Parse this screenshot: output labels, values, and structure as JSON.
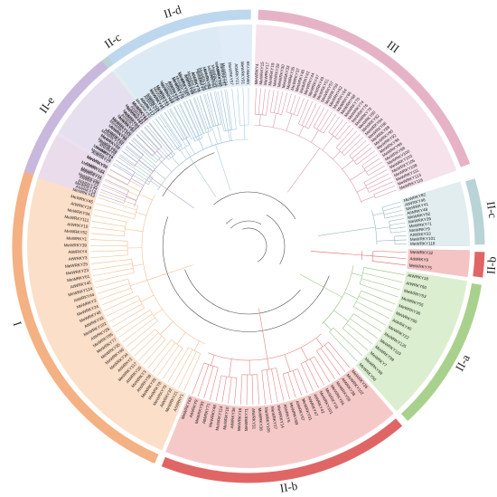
{
  "figure": {
    "type": "circular phylogenetic tree",
    "colors": {
      "I": "#f4b183",
      "II-a": "#a9d18e",
      "II-b": "#e06666",
      "II-c": "#b9d3d6",
      "II-d": "#bdd7ee",
      "II-e": "#c9b8dd",
      "III": "#e6b3c6",
      "backbone": "#444444"
    },
    "groups": [
      {
        "id": "III",
        "label": "III",
        "start": 272,
        "end": 340,
        "color": "#e6b3c6",
        "branch": "#d98fa9",
        "fill": "#f5dde6",
        "leaves": [
          "MeWRKY4",
          "MeWRKY15",
          "MeWRKY17",
          "MeWRKY19",
          "MeWRKY28",
          "MeWRKY30",
          "MeWRKY33",
          "MeWRKY35",
          "MeWRKY37",
          "MeWRKY40",
          "MeWRKY42",
          "MeWRKY44",
          "MeWRKY47",
          "MeWRKY49",
          "MeWRKY51",
          "MeWRKY57",
          "MeWRKY59",
          "MeWRKY62",
          "MeWRKY64",
          "MeWRKY66",
          "MeWRKY68",
          "MeWRKY70",
          "MeWRKY74",
          "MeWRKY76",
          "MeWRKY78",
          "MeWRKY80",
          "MeWRKY82",
          "MeWRKY84",
          "MeWRKY86",
          "MeWRKY88",
          "MeWRKY90",
          "MeWRKY92",
          "MeWRKY94",
          "MeWRKY96",
          "MeWRKY98",
          "MeWRKY100",
          "MeWRKY103",
          "MeWRKY105",
          "MeWRKY108",
          "MeWRKY111",
          "MeWRKY113",
          "MeWRKY116"
        ]
      },
      {
        "id": "II-c-top",
        "label": "II-c",
        "start": 343,
        "end": 360,
        "color": "#b9d3d6",
        "branch": "#8fb3b8",
        "fill": "#dceaeb",
        "leaves": [
          "MeWRKY82",
          "AtWRKY46",
          "MeWRKY41",
          "AtWRKY48",
          "MeWRKY92",
          "MeWRKY26",
          "MeWRKY71",
          "MeWRKY9",
          "AtWRKY53",
          "MeWRKY101",
          "MeWRKY118"
        ]
      },
      {
        "id": "II-b-top",
        "label": "II-b",
        "start": 361,
        "end": 368,
        "color": "#e06666",
        "branch": "#e06666",
        "fill": "#f2b8b8",
        "leaves": [
          "MeWRKY32",
          "AtWRKY9",
          "MeWRKY75"
        ]
      },
      {
        "id": "II-a",
        "label": "II-a",
        "start": 369,
        "end": 408,
        "color": "#a9d18e",
        "branch": "#8fc27a",
        "fill": "#d6ebc8",
        "leaves": [
          "AtWRKY18",
          "AtWRKY60",
          "MeWRKY53",
          "MeWRKY55",
          "MeWRKY36",
          "MeWRKY60",
          "AtWRKY40",
          "MeWRKY22",
          "MeWRKY125",
          "MeWRKY119",
          "MeWRKY99",
          "MeWRKY7",
          "MeWRKY98",
          "MeWRKY56"
        ]
      },
      {
        "id": "II-b",
        "label": "II-b",
        "start": 409,
        "end": 472,
        "color": "#e06666",
        "branch": "#e47a7a",
        "fill": "#f4c0c0",
        "leaves": [
          "MeWRKY36",
          "MeWRKY102",
          "AtWRKY38",
          "MeWRKY58",
          "MeWRKY65",
          "MeWRKY18",
          "MeWRKY101",
          "AtWRKY42",
          "AtWRKY47",
          "MeWRKY31",
          "AtWRKY57",
          "MeWRKY89",
          "AtWRKY6",
          "MeWRKY14",
          "MeWRKY27",
          "MeWRKY106",
          "MeWRKY38",
          "AtWRKY31",
          "MeWRKY71",
          "MeWRKY16",
          "AtWRKY36",
          "MeWRKY10",
          "MeWRKY114",
          "MeWRKY48",
          "AtWRKY71",
          "MeWRKY93",
          "AtWRKY9",
          "MeWRKY63"
        ]
      },
      {
        "id": "I",
        "label": "I",
        "start": 473,
        "end": 570,
        "color": "#f4b183",
        "branch": "#f2bb8f",
        "fill": "#fad9c0",
        "leaves": [
          "AtWRKY1",
          "MeWRKY21",
          "AtWRKY32",
          "MeWRKY70",
          "MeWRKY8",
          "MeWRKY29",
          "AtWRKY58",
          "MeWRKY3",
          "AtWRKY20",
          "MeWRKY117",
          "AtWRKY2",
          "MeWRKY34",
          "MeWRKY66",
          "MeWRKY35",
          "MeWRKY77",
          "MeWRKY85",
          "AtWRKY26",
          "MeWRKY102",
          "AtWRKY33",
          "MeWRKY46",
          "MeWRKY24",
          "MeWRKY3",
          "AtWRKY44",
          "MeWRKY124",
          "AtWRKY45",
          "MeWRKY61",
          "MeWRKY23",
          "MeWRKY25",
          "AtWRKY3",
          "AtWRKY4",
          "MeWRKY39",
          "MeWRKY1",
          "MeWRKY52",
          "AtWRKY10",
          "MeWRKY111",
          "MeWRKY94",
          "AtWRKY19",
          "MeWRKY45",
          "MeWRKY43",
          "MeWRKY72",
          "AtWRKY25",
          "MeWRKY16",
          "MeWRKY104",
          "MeWRKY73"
        ]
      },
      {
        "id": "II-c",
        "label": "II-c",
        "start": 571,
        "end": 622,
        "color": "#b9d3d6",
        "branch": "#9fc0c4",
        "fill": "#dceaeb",
        "leaves": [
          "MeWRKY78",
          "MeWRKY14",
          "AtWRKY8",
          "MeWRKY69",
          "MeWRKY67",
          "MeWRKY107",
          "AtWRKY28",
          "MeWRKY58",
          "MeWRKY110",
          "MeWRKY120",
          "AtWRKY56",
          "AtWRKY24",
          "MeWRKY44",
          "MeWRKY87",
          "AtWRKY43",
          "MeWRKY12",
          "MeWRKY83",
          "AtWRKY12",
          "AtWRKY13",
          "AtWRKY28",
          "MeWRKY75",
          "MeWRKY71",
          "MeWRKY41",
          "MeWRKY97",
          "AtWRKY51",
          "AtWRKY50",
          "MeWRKY29",
          "MeWRKY52",
          "MeWRKY100",
          "AtWRKY59",
          "MeWRKY68",
          "AtWRKY76",
          "MeWRKY2",
          "MeWRKY64",
          "AtWRKY23",
          "MeWRKY90",
          "MeWRKY30",
          "AtWRKY68",
          "MeWRKY81"
        ]
      },
      {
        "id": "II-e",
        "label": "II-e",
        "start": 198,
        "end": 232,
        "color": "#c9b8dd",
        "branch": "#b49ecd",
        "fill": "#e6dcf0",
        "leaves": [
          "AtWRKY14",
          "AtWRKY35",
          "MeWRKY89",
          "MeWRKY11",
          "AtWRKY22",
          "MeWRKY50",
          "AtWRKY27",
          "MeWRKY6",
          "AtWRKY29",
          "MeWRKY79",
          "MeWRKY62",
          "AtWRKY65",
          "MeWRKY115",
          "MeWRKY37",
          "AtWRKY69",
          "MeWRKY121",
          "MeWRKY61"
        ]
      },
      {
        "id": "II-d",
        "label": "II-d",
        "start": 233,
        "end": 271,
        "color": "#bdd7ee",
        "branch": "#9fc5e8",
        "fill": "#dbe9f6",
        "leaves": [
          "AtWRKY17",
          "AtWRKY11",
          "MeWRKY47",
          "MeWRKY13",
          "MeWRKY116",
          "AtWRKY15",
          "MeWRKY74",
          "MeWRKY117",
          "AtWRKY39",
          "AtWRKY74",
          "MeWRKY20",
          "MeWRKY85",
          "AtWRKY7",
          "MeWRKY103",
          "MeWRKY34",
          "MeWRKY57",
          "AtWRKY21",
          "MeWRKY91",
          "MeWRKY39"
        ]
      }
    ]
  }
}
